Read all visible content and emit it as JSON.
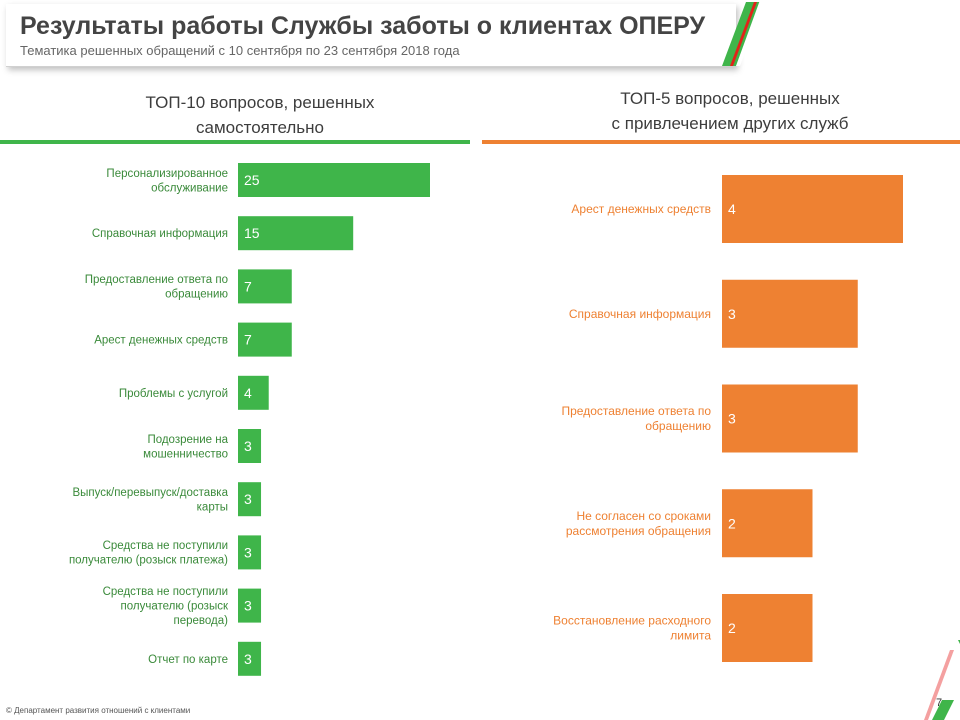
{
  "header": {
    "title": "Результаты работы Службы заботы о клиентах ОПЕРУ",
    "subtitle": "Тематика решенных обращений с 10 сентября по 23 сентября 2018 года"
  },
  "colors": {
    "green": "#3fb54a",
    "orange": "#ee8132",
    "text": "#444444"
  },
  "left_header": [
    "ТОП-10 вопросов, решенных",
    "самостоятельно"
  ],
  "right_header": [
    "ТОП-5 вопросов, решенных",
    "с привлечением других служб"
  ],
  "footnote": "© Департамент развития отношений с клиентами",
  "page_number": "7",
  "chart_data": [
    {
      "type": "bar",
      "orientation": "horizontal",
      "title": "ТОП-10 вопросов, решенных самостоятельно",
      "color": "#3fb54a",
      "categories": [
        [
          "Персонализированное",
          "обслуживание"
        ],
        [
          "Справочная информация"
        ],
        [
          "Предоставление ответа по",
          "обращению"
        ],
        [
          "Арест денежных средств"
        ],
        [
          "Проблемы с услугой"
        ],
        [
          "Подозрение на",
          "мошенничество"
        ],
        [
          "Выпуск/перевыпуск/доставка",
          "карты"
        ],
        [
          "Средства не поступили",
          "получателю (розыск платежа)"
        ],
        [
          "Средства не поступили",
          "получателю (розыск",
          "перевода)"
        ],
        [
          "Отчет по карте"
        ]
      ],
      "values": [
        25,
        15,
        7,
        7,
        4,
        3,
        3,
        3,
        3,
        3
      ],
      "xlim": [
        0,
        25
      ],
      "grid": false,
      "legend": "none"
    },
    {
      "type": "bar",
      "orientation": "horizontal",
      "title": "ТОП-5 вопросов, решенных с привлечением других служб",
      "color": "#ee8132",
      "categories": [
        [
          "Арест денежных средств"
        ],
        [
          "Справочная информация"
        ],
        [
          "Предоставление ответа по",
          "обращению"
        ],
        [
          "Не согласен со сроками",
          "рассмотрения обращения"
        ],
        [
          "Восстановление расходного",
          "лимита"
        ]
      ],
      "values": [
        4,
        3,
        3,
        2,
        2
      ],
      "xlim": [
        0,
        4
      ],
      "grid": false,
      "legend": "none"
    }
  ]
}
